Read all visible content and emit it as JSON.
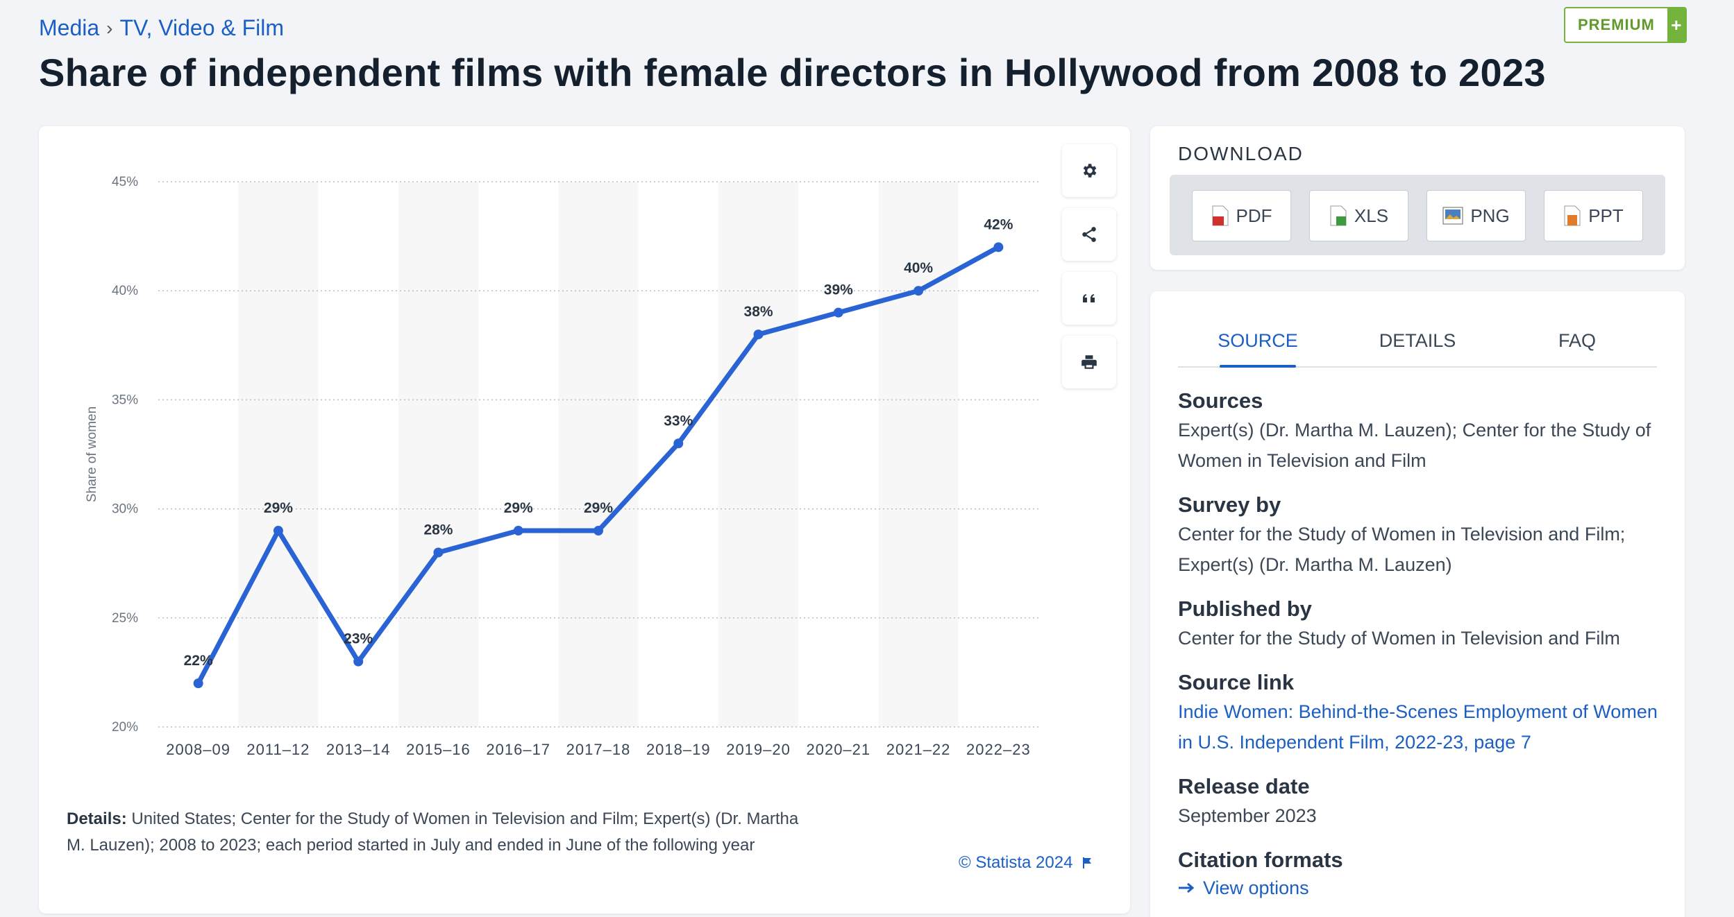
{
  "breadcrumb": {
    "items": [
      "Media",
      "TV, Video & Film"
    ],
    "separator": "›"
  },
  "premium": {
    "label": "PREMIUM",
    "plus": "+"
  },
  "page_title": "Share of independent films with female directors in Hollywood from 2008 to 2023",
  "chart_data": {
    "type": "line",
    "title": "",
    "xlabel": "",
    "ylabel": "Share of women",
    "categories": [
      "2008–09",
      "2011–12",
      "2013–14",
      "2015–16",
      "2016–17",
      "2017–18",
      "2018–19",
      "2019–20",
      "2020–21",
      "2021–22",
      "2022–23"
    ],
    "series": [
      {
        "values": [
          22,
          29,
          23,
          28,
          29,
          29,
          33,
          38,
          39,
          40,
          42
        ]
      }
    ],
    "data_labels": [
      "22%",
      "29%",
      "23%",
      "28%",
      "29%",
      "29%",
      "33%",
      "38%",
      "39%",
      "40%",
      "42%"
    ],
    "ylim": [
      20,
      45
    ],
    "yticks": [
      20,
      25,
      30,
      35,
      40,
      45
    ],
    "ytick_labels": [
      "20%",
      "25%",
      "30%",
      "35%",
      "40%",
      "45%"
    ],
    "grid": true,
    "alternating_column_bands": true,
    "line_color": "#2a63d4",
    "band_color": "#f7f7f8"
  },
  "tools": {
    "settings_icon": "gear-icon",
    "share_icon": "share-icon",
    "cite_icon": "quote-icon",
    "print_icon": "print-icon"
  },
  "details": {
    "label": "Details:",
    "text": "United States; Center for the Study of Women in Television and Film; Expert(s) (Dr. Martha M. Lauzen); 2008 to 2023; each period started in July and ended in June of the following year"
  },
  "copyright": "© Statista 2024",
  "download": {
    "title": "DOWNLOAD",
    "buttons": [
      {
        "label": "PDF",
        "icon": "pdf-file-icon",
        "color": "#d0312d"
      },
      {
        "label": "XLS",
        "icon": "xls-file-icon",
        "color": "#3e9a3e"
      },
      {
        "label": "PNG",
        "icon": "png-file-icon",
        "color": "#4a7fc1"
      },
      {
        "label": "PPT",
        "icon": "ppt-file-icon",
        "color": "#e07b2a"
      }
    ]
  },
  "tabs": [
    {
      "label": "SOURCE",
      "active": true
    },
    {
      "label": "DETAILS",
      "active": false
    },
    {
      "label": "FAQ",
      "active": false
    }
  ],
  "source_info": {
    "sources_h": "Sources",
    "sources_t": "Expert(s) (Dr. Martha M. Lauzen); Center for the Study of Women in Television and Film",
    "survey_h": "Survey by",
    "survey_t": "Center for the Study of Women in Television and Film; Expert(s) (Dr. Martha M. Lauzen)",
    "published_h": "Published by",
    "published_t": "Center for the Study of Women in Television and Film",
    "link_h": "Source link",
    "link_t": "Indie Women: Behind-the-Scenes Employment of Women in U.S. Independent Film, 2022-23, page 7",
    "release_h": "Release date",
    "release_t": "September 2023",
    "citation_h": "Citation formats",
    "citation_link": "View options"
  }
}
